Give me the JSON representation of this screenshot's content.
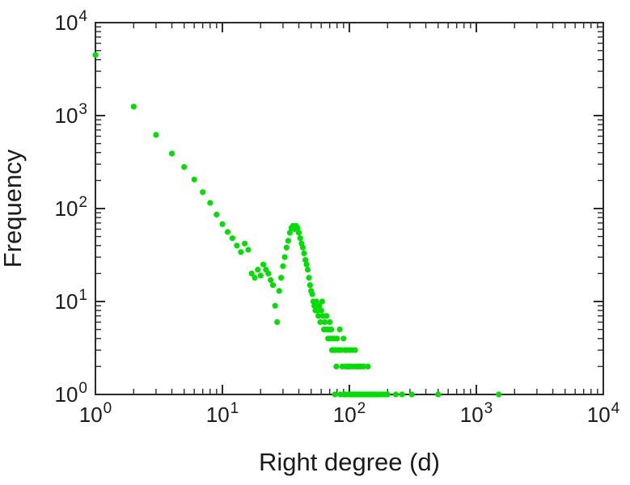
{
  "chart_data": {
    "type": "scatter",
    "title": "",
    "xlabel": "Right degree (d)",
    "ylabel": "Frequency",
    "x_scale": "log",
    "y_scale": "log",
    "xlim": [
      1,
      10000
    ],
    "ylim": [
      1,
      10000
    ],
    "x_tick_exponents": [
      0,
      1,
      2,
      3,
      4
    ],
    "y_tick_exponents": [
      0,
      1,
      2,
      3,
      4
    ],
    "tick_base": "10",
    "grid": false,
    "legend": "none",
    "point_color": "#00dd00",
    "axis_color": "#2b2b2b",
    "text_color": "#1a1a1a",
    "points": [
      [
        1,
        4500
      ],
      [
        2,
        1250
      ],
      [
        3,
        620
      ],
      [
        4,
        390
      ],
      [
        5,
        280
      ],
      [
        6,
        205
      ],
      [
        7,
        150
      ],
      [
        8,
        115
      ],
      [
        9,
        86
      ],
      [
        10,
        68
      ],
      [
        11,
        56
      ],
      [
        12,
        48
      ],
      [
        13,
        40
      ],
      [
        14,
        34
      ],
      [
        15,
        42
      ],
      [
        16,
        36
      ],
      [
        17,
        20
      ],
      [
        18,
        18
      ],
      [
        19,
        22
      ],
      [
        20,
        19
      ],
      [
        21,
        25
      ],
      [
        22,
        22
      ],
      [
        23,
        20
      ],
      [
        24,
        17
      ],
      [
        25,
        15
      ],
      [
        26,
        9
      ],
      [
        27,
        6
      ],
      [
        28,
        13
      ],
      [
        29,
        18
      ],
      [
        30,
        24
      ],
      [
        31,
        30
      ],
      [
        32,
        38
      ],
      [
        33,
        45
      ],
      [
        34,
        55
      ],
      [
        35,
        62
      ],
      [
        36,
        65
      ],
      [
        37,
        60
      ],
      [
        38,
        65
      ],
      [
        39,
        62
      ],
      [
        40,
        55
      ],
      [
        41,
        48
      ],
      [
        42,
        42
      ],
      [
        43,
        38
      ],
      [
        44,
        33
      ],
      [
        45,
        28
      ],
      [
        46,
        25
      ],
      [
        47,
        22
      ],
      [
        48,
        18
      ],
      [
        49,
        15
      ],
      [
        50,
        13
      ],
      [
        51,
        12
      ],
      [
        52,
        10
      ],
      [
        53,
        9
      ],
      [
        54,
        8
      ],
      [
        55,
        10
      ],
      [
        56,
        8
      ],
      [
        57,
        7
      ],
      [
        58,
        9
      ],
      [
        59,
        6
      ],
      [
        60,
        8
      ],
      [
        61,
        10
      ],
      [
        62,
        7
      ],
      [
        63,
        5
      ],
      [
        64,
        6
      ],
      [
        65,
        5
      ],
      [
        66,
        7
      ],
      [
        67,
        5
      ],
      [
        68,
        4
      ],
      [
        69,
        5
      ],
      [
        70,
        6
      ],
      [
        71,
        4
      ],
      [
        72,
        5
      ],
      [
        73,
        3
      ],
      [
        74,
        4
      ],
      [
        75,
        3
      ],
      [
        76,
        4
      ],
      [
        77,
        1
      ],
      [
        78,
        3
      ],
      [
        79,
        2
      ],
      [
        80,
        4
      ],
      [
        82,
        3
      ],
      [
        84,
        5
      ],
      [
        85,
        1
      ],
      [
        86,
        3
      ],
      [
        88,
        2
      ],
      [
        90,
        4
      ],
      [
        91,
        1
      ],
      [
        92,
        3
      ],
      [
        93,
        1
      ],
      [
        94,
        2
      ],
      [
        95,
        3
      ],
      [
        96,
        1
      ],
      [
        98,
        2
      ],
      [
        100,
        3
      ],
      [
        101,
        1
      ],
      [
        102,
        2
      ],
      [
        104,
        1
      ],
      [
        105,
        3
      ],
      [
        106,
        1
      ],
      [
        108,
        2
      ],
      [
        110,
        1
      ],
      [
        111,
        3
      ],
      [
        112,
        1
      ],
      [
        114,
        2
      ],
      [
        115,
        1
      ],
      [
        117,
        1
      ],
      [
        118,
        2
      ],
      [
        120,
        1
      ],
      [
        122,
        1
      ],
      [
        124,
        2
      ],
      [
        126,
        1
      ],
      [
        128,
        1
      ],
      [
        130,
        2
      ],
      [
        132,
        1
      ],
      [
        135,
        1
      ],
      [
        138,
        1
      ],
      [
        140,
        2
      ],
      [
        142,
        1
      ],
      [
        145,
        1
      ],
      [
        148,
        1
      ],
      [
        150,
        1
      ],
      [
        153,
        1
      ],
      [
        156,
        1
      ],
      [
        160,
        1
      ],
      [
        164,
        1
      ],
      [
        168,
        1
      ],
      [
        172,
        1
      ],
      [
        178,
        1
      ],
      [
        185,
        1
      ],
      [
        192,
        1
      ],
      [
        200,
        1
      ],
      [
        232,
        1
      ],
      [
        260,
        1
      ],
      [
        310,
        1
      ],
      [
        500,
        1
      ],
      [
        1500,
        1
      ]
    ]
  }
}
